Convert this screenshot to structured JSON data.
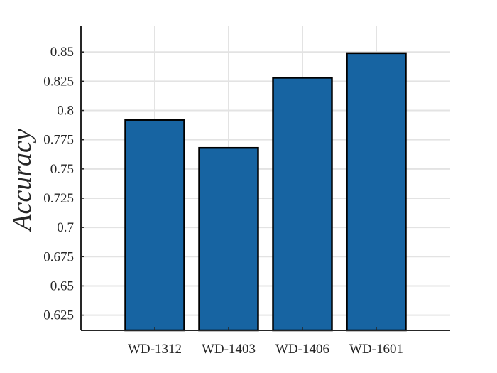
{
  "chart_data": {
    "type": "bar",
    "title": "",
    "xlabel": "",
    "ylabel": "Accuracy",
    "categories": [
      "WD-1312",
      "WD-1403",
      "WD-1406",
      "WD-1601"
    ],
    "values": [
      0.792,
      0.768,
      0.828,
      0.849
    ],
    "ylim": [
      0.612,
      0.872
    ],
    "yticks": [
      0.625,
      0.65,
      0.675,
      0.7,
      0.725,
      0.75,
      0.775,
      0.8,
      0.825,
      0.85
    ],
    "ytick_labels": [
      "0.625",
      "0.65",
      "0.675",
      "0.7",
      "0.725",
      "0.75",
      "0.775",
      "0.8",
      "0.825",
      "0.85"
    ],
    "grid": true,
    "legend": "none",
    "bar_color": "#1764a2",
    "bar_edge_color": "#000000",
    "grid_color": "#e3e3e3",
    "axis_color": "#262626"
  }
}
